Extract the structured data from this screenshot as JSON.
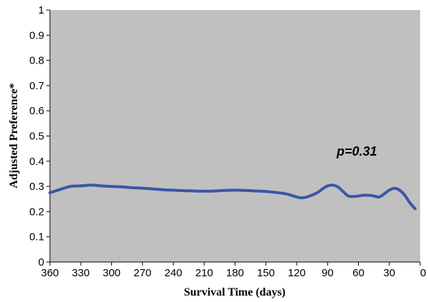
{
  "chart_data": {
    "type": "line",
    "xlabel": "Survival Time (days)",
    "ylabel": "Adjusted Preference*",
    "xlim": [
      360,
      0
    ],
    "ylim": [
      0,
      1
    ],
    "x_ticks": [
      360,
      330,
      300,
      270,
      240,
      210,
      180,
      150,
      120,
      90,
      60,
      30,
      0
    ],
    "y_ticks": [
      0,
      0.1,
      0.2,
      0.3,
      0.4,
      0.5,
      0.6,
      0.7,
      0.8,
      0.9,
      1
    ],
    "y_tick_labels": [
      "0",
      "0.1",
      "0.2",
      "0.3",
      "0.4",
      "0.5",
      "0.6",
      "0.7",
      "0.8",
      "0.9",
      "1"
    ],
    "grid": false,
    "plot_background": "#c0c0c0",
    "line_color": "#3a56a8",
    "annotation": "p=0.31",
    "series": [
      {
        "x": [
          360,
          350,
          340,
          330,
          320,
          310,
          300,
          290,
          280,
          270,
          260,
          250,
          240,
          230,
          220,
          210,
          200,
          190,
          180,
          170,
          160,
          150,
          140,
          130,
          120,
          115,
          110,
          100,
          95,
          90,
          85,
          80,
          75,
          70,
          65,
          60,
          55,
          50,
          45,
          40,
          35,
          30,
          25,
          20,
          15,
          10,
          5
        ],
        "values": [
          0.275,
          0.288,
          0.3,
          0.302,
          0.305,
          0.302,
          0.3,
          0.298,
          0.295,
          0.293,
          0.29,
          0.287,
          0.285,
          0.283,
          0.282,
          0.281,
          0.282,
          0.284,
          0.285,
          0.284,
          0.282,
          0.28,
          0.276,
          0.27,
          0.258,
          0.255,
          0.258,
          0.275,
          0.29,
          0.302,
          0.305,
          0.298,
          0.28,
          0.262,
          0.26,
          0.262,
          0.265,
          0.265,
          0.262,
          0.258,
          0.27,
          0.285,
          0.293,
          0.285,
          0.265,
          0.235,
          0.212
        ]
      }
    ]
  }
}
